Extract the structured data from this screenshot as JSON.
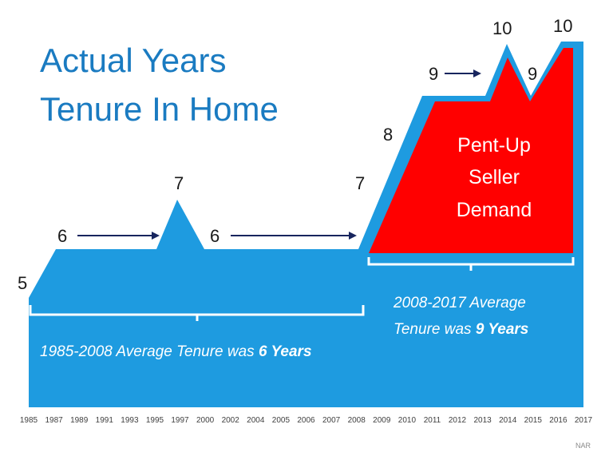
{
  "title": {
    "line1": "Actual Years",
    "line2": "Tenure In Home"
  },
  "source": "NAR",
  "colors": {
    "area": "#1e9be0",
    "pent_up": "#ff0000",
    "title": "#1a7bc1",
    "arrow": "#17255e"
  },
  "pent_up_label": [
    "Pent-Up",
    "Seller",
    "Demand"
  ],
  "notes": {
    "early": {
      "text": "1985-2008 Average Tenure was ",
      "bold": "6 Years"
    },
    "late": {
      "line1": "2008-2017 Average",
      "line2_text": "Tenure was ",
      "line2_bold": "9 Years"
    }
  },
  "chart_data": {
    "type": "area",
    "title": "Actual Years Tenure In Home",
    "xlabel": "",
    "ylabel": "",
    "grid": false,
    "x_ticks": [
      "1985",
      "1987",
      "1989",
      "1991",
      "1993",
      "1995",
      "1997",
      "2000",
      "2002",
      "2004",
      "2005",
      "2006",
      "2007",
      "2008",
      "2009",
      "2010",
      "2011",
      "2012",
      "2013",
      "2014",
      "2015",
      "2016",
      "2017"
    ],
    "points": [
      {
        "x": "1985",
        "y": 5
      },
      {
        "x": "1987",
        "y": 6
      },
      {
        "x": "1995",
        "y": 6
      },
      {
        "x": "1997",
        "y": 7
      },
      {
        "x": "2000",
        "y": 6
      },
      {
        "x": "2008",
        "y": 7
      },
      {
        "x": "2010",
        "y": 8
      },
      {
        "x": "2011",
        "y": 9
      },
      {
        "x": "2013",
        "y": 9
      },
      {
        "x": "2014",
        "y": 10
      },
      {
        "x": "2015",
        "y": 9
      },
      {
        "x": "2016",
        "y": 10
      },
      {
        "x": "2017",
        "y": 10
      }
    ],
    "data_labels": [
      "5",
      "6",
      "7",
      "6",
      "7",
      "8",
      "9",
      "10",
      "9",
      "10"
    ],
    "averages": [
      {
        "period": "1985-2008",
        "years": 6
      },
      {
        "period": "2008-2017",
        "years": 9
      }
    ]
  }
}
